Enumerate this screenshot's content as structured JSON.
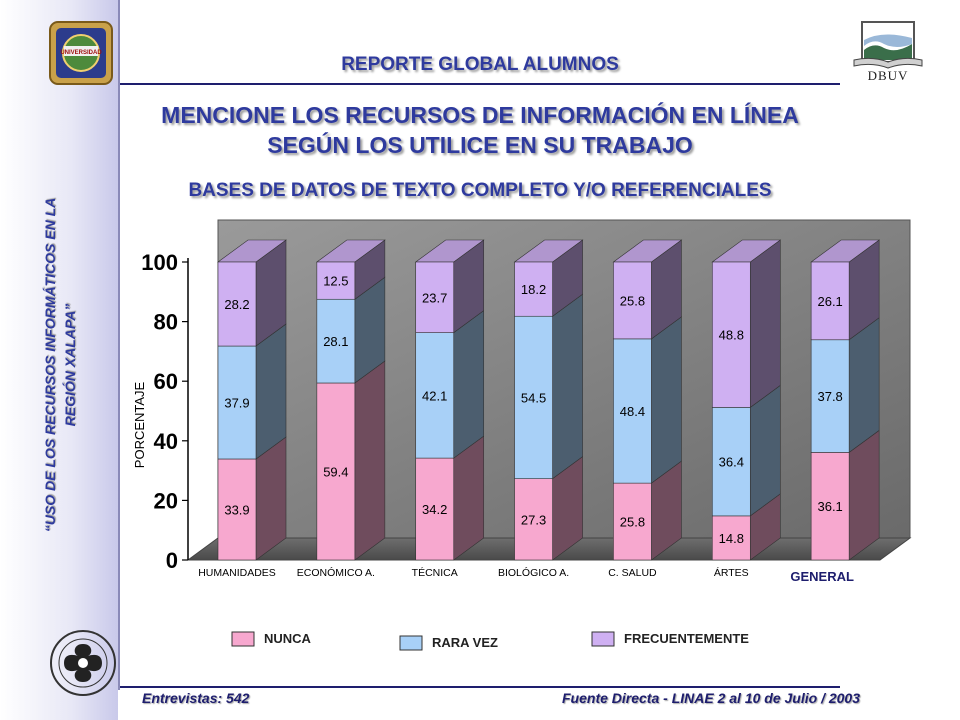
{
  "header": {
    "report_title": "REPORTE GLOBAL ALUMNOS",
    "question_line1": "MENCIONE LOS RECURSOS DE INFORMACIÓN EN LÍNEA",
    "question_line2": "SEGÚN LOS UTILICE EN SU TRABAJO",
    "subtitle": "BASES DE DATOS DE TEXTO COMPLETO Y/O REFERENCIALES"
  },
  "sidebar": {
    "line1": "“USO DE LOS RECURSOS INFORMÁTICOS EN LA",
    "line2": "REGIÓN XALAPA”"
  },
  "logos": {
    "uv_seal_text": "UNIVERSIDAD",
    "dbuv_text": "DBUV"
  },
  "footer": {
    "interviews": "Entrevistas: 542",
    "source": "Fuente Directa -  LINAE 2 al 10  de Julio / 2003"
  },
  "chart_data": {
    "type": "bar",
    "stacked": true,
    "three_d": true,
    "ylabel": "PORCENTAJE",
    "ylim": [
      0,
      100
    ],
    "yticks": [
      0,
      20,
      40,
      60,
      80,
      100
    ],
    "categories": [
      "HUMANIDADES",
      "ECONÓMICO  A.",
      "TÉCNICA",
      "BIOLÓGICO  A.",
      "C. SALUD",
      "ÁRTES",
      "GENERAL"
    ],
    "series": [
      {
        "name": "NUNCA",
        "values": [
          33.9,
          59.4,
          34.2,
          27.3,
          25.8,
          14.8,
          36.1
        ],
        "color": "#f7a8cf"
      },
      {
        "name": "RARA VEZ",
        "values": [
          37.9,
          28.1,
          42.1,
          54.5,
          48.4,
          36.4,
          37.8
        ],
        "color": "#a8d0f7"
      },
      {
        "name": "FRECUENTEMENTE",
        "values": [
          28.2,
          12.5,
          23.7,
          18.2,
          25.8,
          48.8,
          26.1
        ],
        "color": "#cfb0f2"
      }
    ],
    "legend_position": "bottom",
    "grid": false
  }
}
